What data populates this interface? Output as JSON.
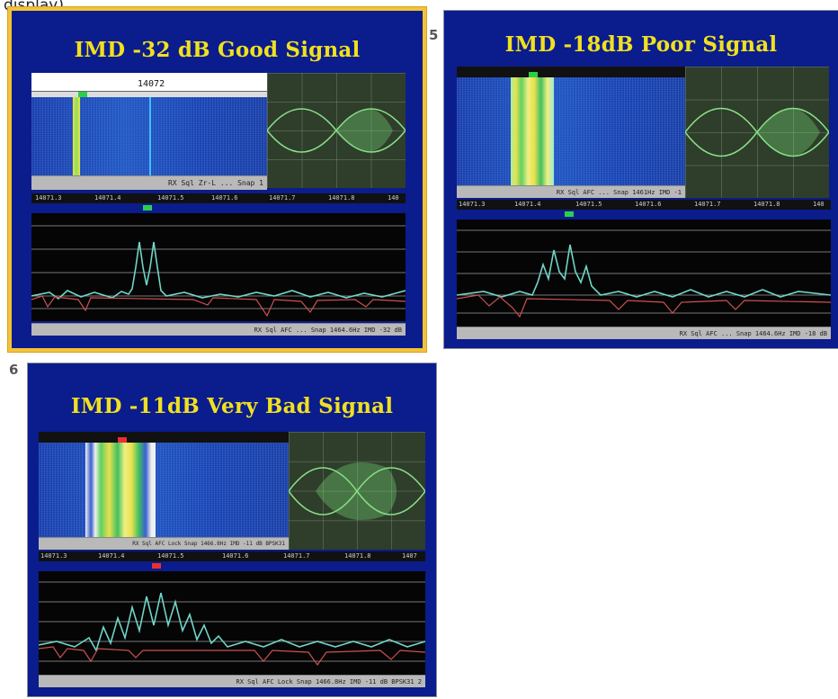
{
  "page": {
    "top_clip_text": "display)."
  },
  "slides": [
    {
      "number": "",
      "title": "IMD -32 dB Good Signal",
      "frequency_label": "14072",
      "status_text": "RX  Sql  Zr-L  ...  Snap  1",
      "ruler_ticks": [
        "14071.3",
        "14071.4",
        "14071.5",
        "14071.6",
        "14071.7",
        "14071.8",
        "140"
      ],
      "spectrum_status": "RX  Sql  AFC  ...  Snap  1464.6Hz  IMD -32 dB",
      "selected": true
    },
    {
      "number": "5",
      "title": "IMD -18dB Poor Signal",
      "frequency_label": "",
      "status_text": "RX  Sql  AFC  ...  Snap  1461Hz  IMD -1",
      "ruler_ticks": [
        "14071.3",
        "14071.4",
        "14071.5",
        "14071.6",
        "14071.7",
        "14071.8",
        "140"
      ],
      "spectrum_status": "RX  Sql  AFC  ...  Snap  1464.6Hz  IMD -18 dB",
      "selected": false
    },
    {
      "number": "6",
      "title": "IMD -11dB Very Bad Signal",
      "frequency_label": "",
      "status_text": "RX  Sql  AFC  Lock  Snap  1466.8Hz  IMD -11 dB  BPSK31",
      "ruler_ticks": [
        "14071.3",
        "14071.4",
        "14071.5",
        "14071.6",
        "14071.7",
        "14071.8",
        "1407"
      ],
      "spectrum_status": "RX  Sql  AFC  Lock  Snap  1466.8Hz  IMD -11 dB  BPSK31  2",
      "selected": false
    }
  ],
  "colors": {
    "slide_bg": "#0b1c8c",
    "title": "#f0e020",
    "selection": "#f2c33a",
    "trace_cyan": "#6fd6c8",
    "trace_red": "#d05050"
  }
}
